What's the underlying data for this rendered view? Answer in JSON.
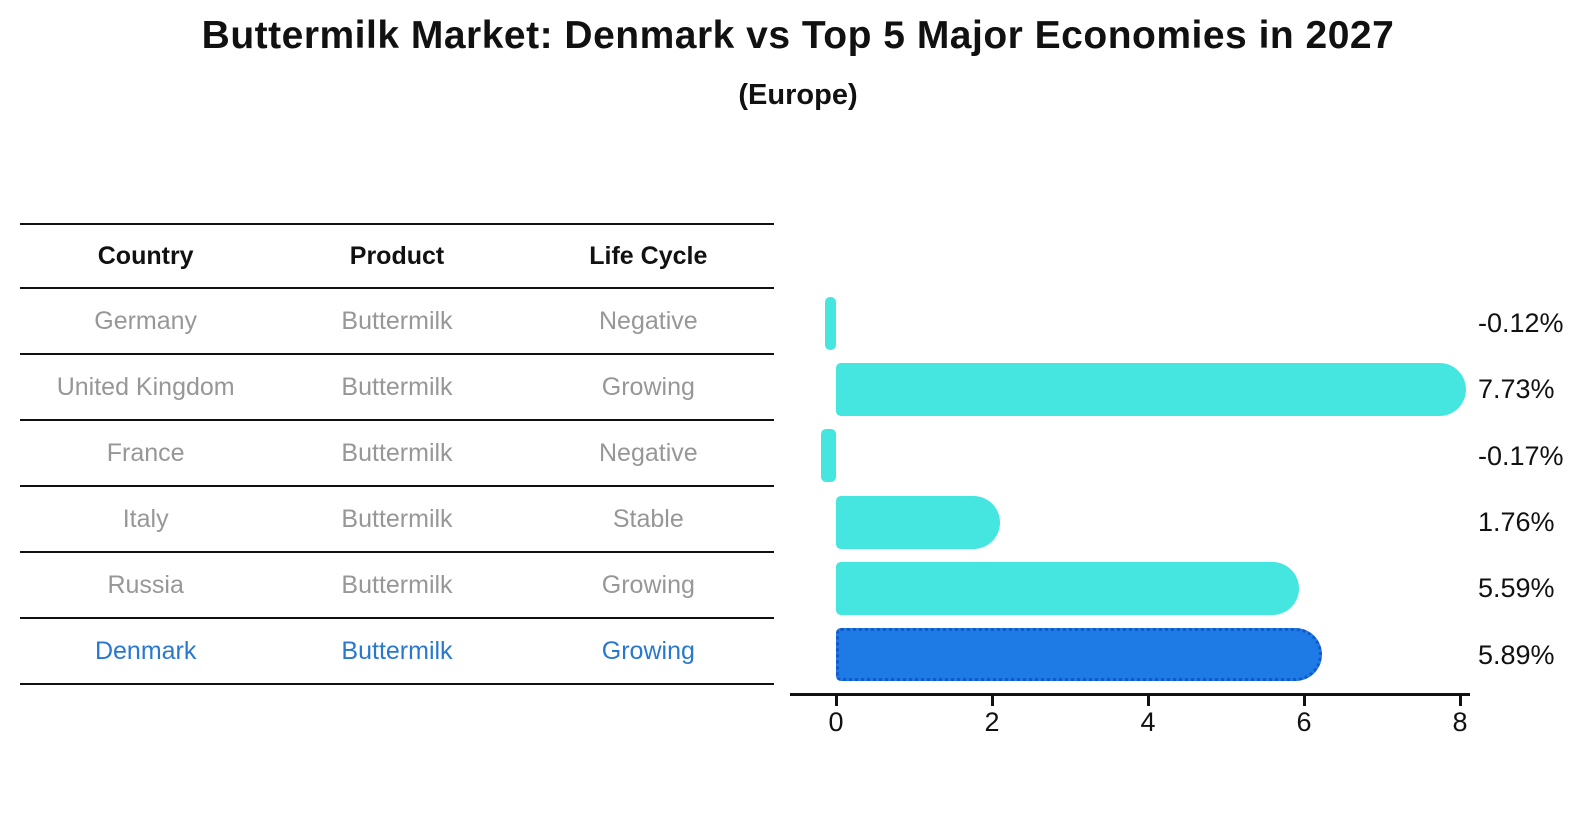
{
  "title": "Buttermilk Market: Denmark vs Top 5 Major Economies in 2027",
  "subtitle": "(Europe)",
  "table": {
    "columns": [
      "Country",
      "Product",
      "Life Cycle"
    ],
    "rows": [
      {
        "country": "Germany",
        "product": "Buttermilk",
        "life_cycle": "Negative",
        "highlighted": false
      },
      {
        "country": "United Kingdom",
        "product": "Buttermilk",
        "life_cycle": "Growing",
        "highlighted": false
      },
      {
        "country": "France",
        "product": "Buttermilk",
        "life_cycle": "Negative",
        "highlighted": false
      },
      {
        "country": "Italy",
        "product": "Buttermilk",
        "life_cycle": "Stable",
        "highlighted": false
      },
      {
        "country": "Russia",
        "product": "Buttermilk",
        "life_cycle": "Growing",
        "highlighted": false
      },
      {
        "country": "Denmark",
        "product": "Buttermilk",
        "life_cycle": "Growing",
        "highlighted": true
      }
    ]
  },
  "chart_data": {
    "type": "bar",
    "orientation": "horizontal",
    "title": "Buttermilk Market: Denmark vs Top 5 Major Economies in 2027",
    "subtitle": "(Europe)",
    "categories": [
      "Germany",
      "United Kingdom",
      "France",
      "Italy",
      "Russia",
      "Denmark"
    ],
    "values": [
      -0.12,
      7.73,
      -0.17,
      1.76,
      5.59,
      5.89
    ],
    "value_labels": [
      "-0.12%",
      "7.73%",
      "-0.17%",
      "1.76%",
      "5.59%",
      "5.89%"
    ],
    "xlabel": "",
    "ylabel": "",
    "xtick_labels": [
      "0",
      "2",
      "4",
      "6",
      "8"
    ],
    "xtick_values": [
      0,
      2,
      4,
      6,
      8
    ],
    "xlim": [
      -0.6,
      8.2
    ],
    "grid": false,
    "legend_position": "none",
    "bar_color": "#45e6e0",
    "highlight_bar_color": "#1e7ae4",
    "highlight_border_color": "#1158c8",
    "highlight_index": 5
  },
  "colors": {
    "background": "#ffffff",
    "table_header_text": "#111111",
    "table_body_text": "#979797",
    "highlight_row_text": "#2878d0",
    "axis": "#111111",
    "value_label_text": "#111111"
  }
}
